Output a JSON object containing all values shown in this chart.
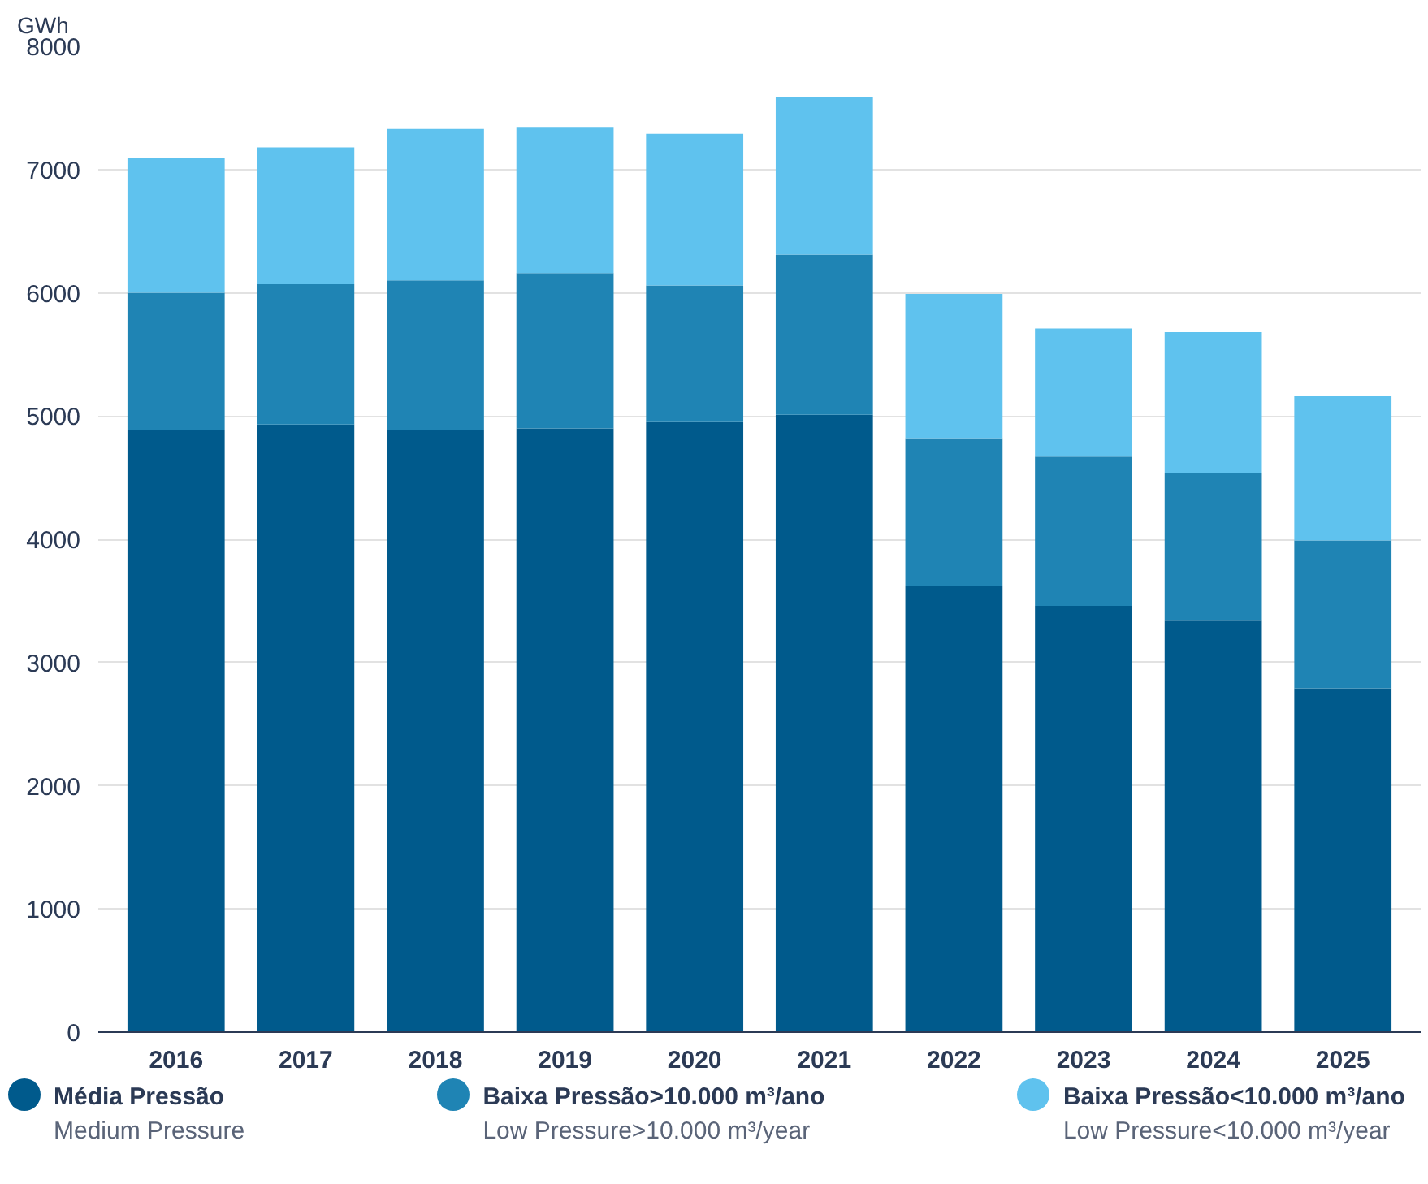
{
  "chart_data": {
    "type": "bar",
    "stacked": true,
    "ylabel": "GWh",
    "categories": [
      "2016",
      "2017",
      "2018",
      "2019",
      "2020",
      "2021",
      "2022",
      "2023",
      "2024",
      "2025"
    ],
    "series": [
      {
        "name": "Média Pressão\nMedium Pressure",
        "color": "#005a8c",
        "values": [
          4890,
          4930,
          4890,
          4900,
          4950,
          5010,
          3620,
          3460,
          3340,
          2790
        ]
      },
      {
        "name": "Baixa Pressão>10.000 m³/ano\nLow Pressure>10.000 m³/year",
        "color": "#1f84b4",
        "values": [
          1110,
          1140,
          1210,
          1260,
          1110,
          1300,
          1200,
          1210,
          1200,
          1200
        ]
      },
      {
        "name": "Baixa Pressão<10.000 m³/ano\nLow Pressure<10.000 m³/year",
        "color": "#5fc2ee",
        "values": [
          1095,
          1110,
          1230,
          1180,
          1230,
          1280,
          1170,
          1040,
          1140,
          1170
        ]
      }
    ],
    "ylim": [
      0,
      8000
    ],
    "yticks": [
      0,
      1000,
      2000,
      3000,
      4000,
      5000,
      6000,
      7000,
      8000
    ],
    "grid": "y",
    "legend": "bottom"
  }
}
